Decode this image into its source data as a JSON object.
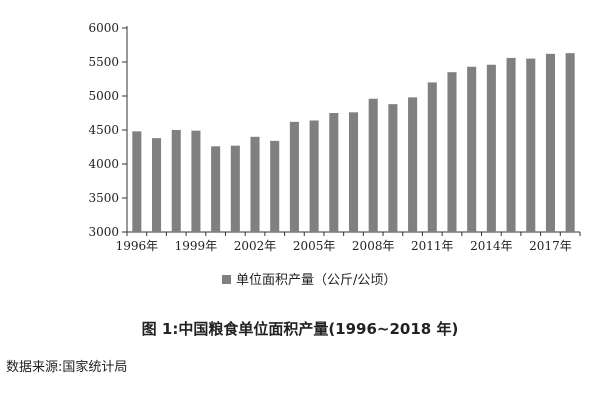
{
  "chart_data": {
    "type": "bar",
    "categories": [
      "1996年",
      "1997年",
      "1998年",
      "1999年",
      "2000年",
      "2001年",
      "2002年",
      "2003年",
      "2004年",
      "2005年",
      "2006年",
      "2007年",
      "2008年",
      "2009年",
      "2010年",
      "2011年",
      "2012年",
      "2013年",
      "2014年",
      "2015年",
      "2016年",
      "2017年",
      "2018年"
    ],
    "series": [
      {
        "name": "单位面积产量（公斤/公顷）",
        "values": [
          4480,
          4380,
          4500,
          4490,
          4260,
          4270,
          4400,
          4340,
          4620,
          4640,
          4750,
          4760,
          4960,
          4880,
          4980,
          5200,
          5350,
          5430,
          5460,
          5560,
          5550,
          5620,
          5630
        ]
      }
    ],
    "x_tick_labels": [
      "1996年",
      "1999年",
      "2002年",
      "2005年",
      "2008年",
      "2011年",
      "2014年",
      "2017年"
    ],
    "y_ticks": [
      "3000",
      "3500",
      "4000",
      "4500",
      "5000",
      "5500",
      "6000"
    ],
    "ylim": [
      3000,
      6000
    ],
    "grid": false,
    "legend_position": "bottom",
    "bar_color": "#808080"
  },
  "caption": "图 1:中国粮食单位面积产量(1996~2018 年)",
  "source": "数据来源:国家统计局"
}
